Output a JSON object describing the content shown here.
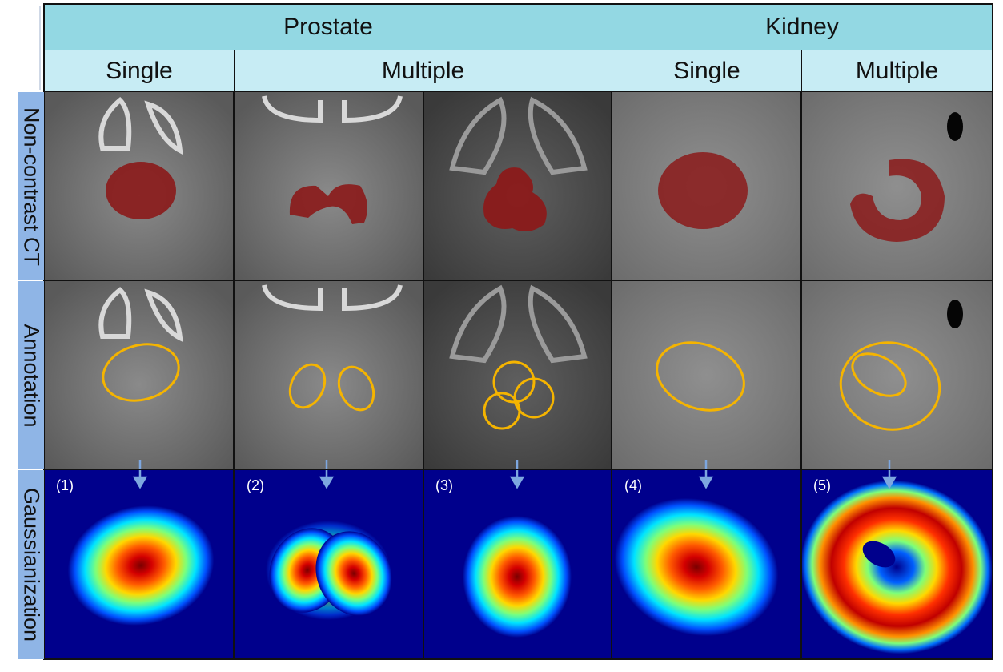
{
  "headers": {
    "organs": [
      "Prostate",
      "Kidney"
    ],
    "sub": [
      "Single",
      "Multiple",
      "Single",
      "Multiple"
    ]
  },
  "row_labels": [
    "Non-contrast CT",
    "Annotation",
    "Gaussianization"
  ],
  "panel_numbers": [
    "(1)",
    "(2)",
    "(3)",
    "(4)",
    "(5)"
  ],
  "colors": {
    "header_top": "#93d8e3",
    "header_sub": "#c7ecf4",
    "row_label_bg": "#8fb5e6",
    "segmentation": "#8b1a1a",
    "annotation_ellipse": "#f5b400",
    "arrow": "#7da7e0",
    "heatmap_bg": "#00008c"
  }
}
